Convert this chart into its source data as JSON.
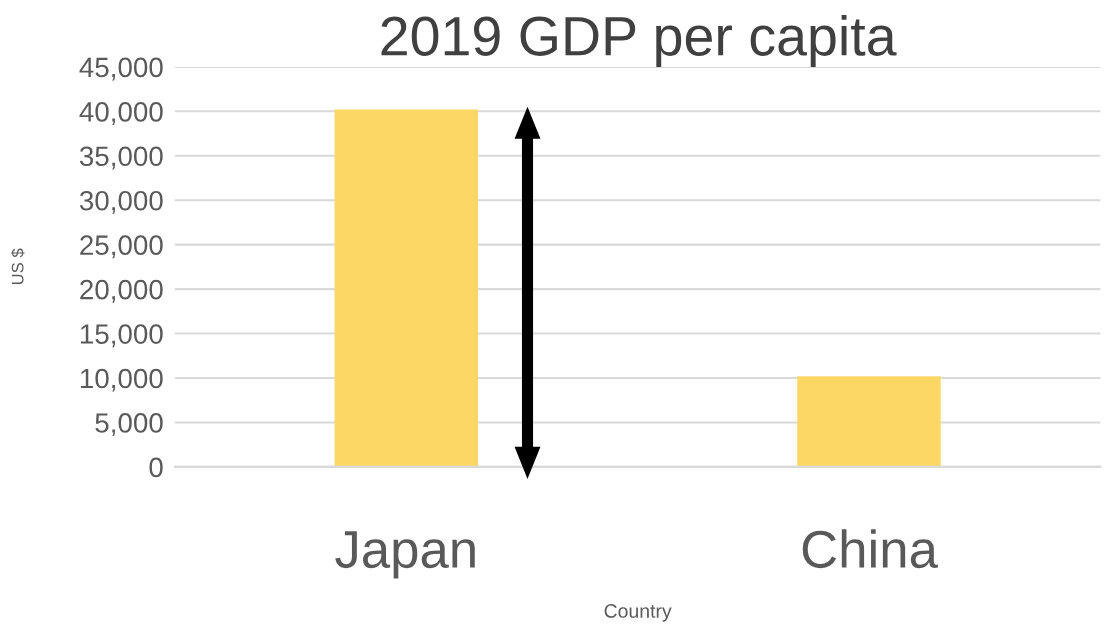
{
  "chart_data": {
    "type": "bar",
    "title": "2019 GDP per capita",
    "xlabel": "Country",
    "ylabel": "US $",
    "categories": [
      "Japan",
      "China"
    ],
    "values": [
      40200,
      10200
    ],
    "color": "#fdd766",
    "ylim": [
      0,
      45000
    ],
    "yticks": [
      {
        "value": 0,
        "label": "0"
      },
      {
        "value": 5000,
        "label": "5,000"
      },
      {
        "value": 10000,
        "label": "10,000"
      },
      {
        "value": 15000,
        "label": "15,000"
      },
      {
        "value": 20000,
        "label": "20,000"
      },
      {
        "value": 25000,
        "label": "25,000"
      },
      {
        "value": 30000,
        "label": "30,000"
      },
      {
        "value": 35000,
        "label": "35,000"
      },
      {
        "value": 40000,
        "label": "40,000"
      },
      {
        "value": 45000,
        "label": "45,000"
      }
    ],
    "grid": "y"
  }
}
